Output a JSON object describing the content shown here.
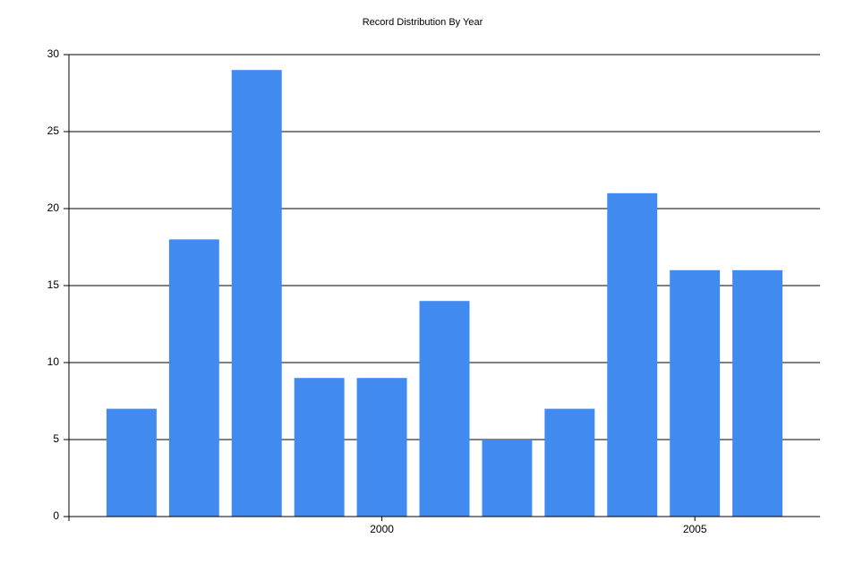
{
  "chart_data": {
    "type": "bar",
    "title": "Record Distribution By Year",
    "x": [
      1996,
      1997,
      1998,
      1999,
      2000,
      2001,
      2002,
      2003,
      2004,
      2005,
      2006
    ],
    "values": [
      7,
      18,
      29,
      9,
      9,
      14,
      5,
      7,
      21,
      16,
      16
    ],
    "color": "#418af0",
    "xlim": [
      1995,
      2007
    ],
    "xticks": [
      2000,
      2005
    ],
    "ylim": [
      0,
      30
    ],
    "yticks": [
      0,
      5,
      10,
      15,
      20,
      25,
      30
    ],
    "grid": true
  }
}
